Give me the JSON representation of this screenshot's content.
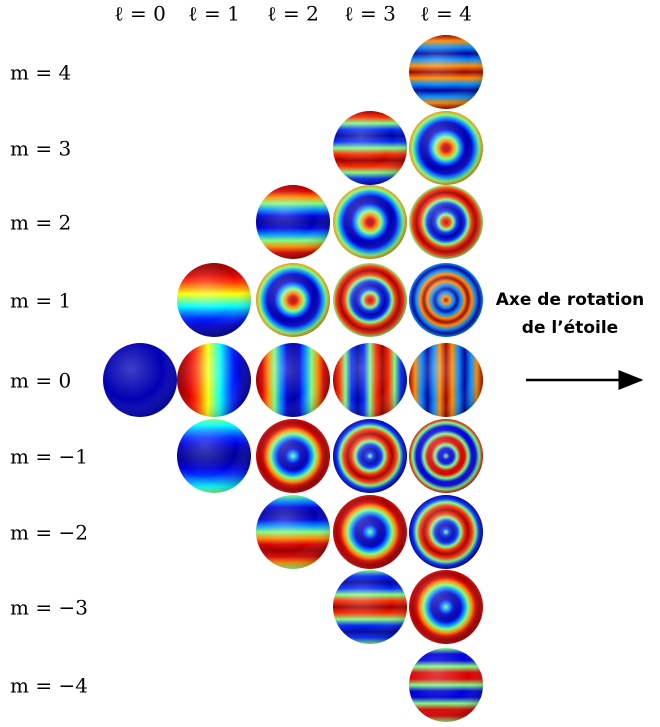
{
  "columns": [
    "ℓ = 0",
    "ℓ = 1",
    "ℓ = 2",
    "ℓ = 3",
    "ℓ = 4"
  ],
  "rows": [
    "m = 4",
    "m = 3",
    "m = 2",
    "m = 1",
    "m = 0",
    "m = −1",
    "m = −2",
    "m = −3",
    "m = −4"
  ],
  "annotation": {
    "lines": [
      "Axe de rotation",
      "de l’étoile"
    ]
  }
}
